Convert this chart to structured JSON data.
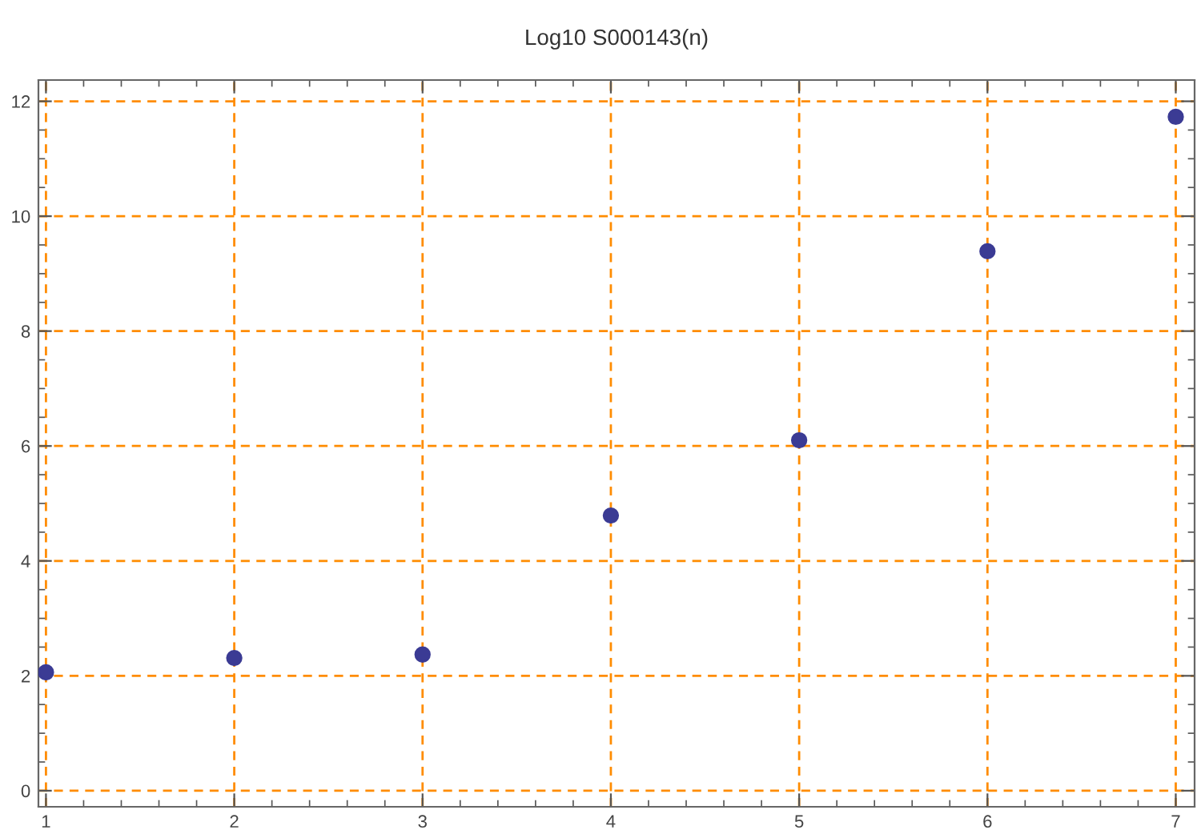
{
  "chart_data": {
    "type": "scatter",
    "title": "Log10 S000143(n)",
    "x": [
      1,
      2,
      3,
      4,
      5,
      6,
      7
    ],
    "series": [
      {
        "color": "#3b3b94",
        "values": [
          2.06,
          2.31,
          2.37,
          4.79,
          6.1,
          9.39,
          11.73
        ]
      }
    ],
    "xlim": [
      0.96,
      7.1
    ],
    "xticks": [
      1,
      2,
      3,
      4,
      5,
      6,
      7
    ],
    "ylim": [
      -0.28,
      12.37
    ],
    "yticks": [
      0,
      2,
      4,
      6,
      8,
      10,
      12
    ],
    "grid": true,
    "marker": "circle"
  }
}
